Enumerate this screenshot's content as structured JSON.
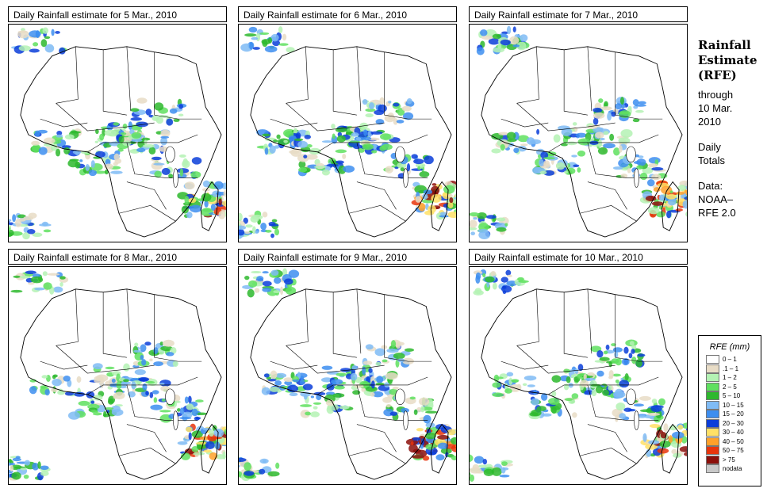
{
  "panels": [
    {
      "title": "Daily Rainfall estimate for  5 Mar., 2010"
    },
    {
      "title": "Daily Rainfall estimate for  6 Mar., 2010"
    },
    {
      "title": "Daily Rainfall estimate for  7 Mar., 2010"
    },
    {
      "title": "Daily Rainfall estimate for  8 Mar., 2010"
    },
    {
      "title": "Daily Rainfall estimate for  9 Mar., 2010"
    },
    {
      "title": "Daily Rainfall estimate for  10 Mar., 2010"
    }
  ],
  "sidebar": {
    "title_line1": "Rainfall",
    "title_line2": "Estimate",
    "title_line3": "(RFE)",
    "through_label": "through",
    "through_date_line1": "10 Mar.",
    "through_date_line2": "2010",
    "totals_line1": "Daily",
    "totals_line2": "Totals",
    "data_label": "Data:",
    "source_line1": "NOAA–",
    "source_line2": "RFE 2.0"
  },
  "legend": {
    "title": "RFE (mm)",
    "items": [
      {
        "label": "0 – 1",
        "color": "#ffffff"
      },
      {
        "label": ".1 – 1",
        "color": "#e8dcc6"
      },
      {
        "label": "1 – 2",
        "color": "#b4f2b4"
      },
      {
        "label": "2 – 5",
        "color": "#5fe05f"
      },
      {
        "label": "5 – 10",
        "color": "#2db82d"
      },
      {
        "label": "10 – 15",
        "color": "#7fbbf5"
      },
      {
        "label": "15 – 20",
        "color": "#3d8ef0"
      },
      {
        "label": "20 – 30",
        "color": "#0b3ed9"
      },
      {
        "label": "30 – 40",
        "color": "#ffe066"
      },
      {
        "label": "40 – 50",
        "color": "#ffa12a"
      },
      {
        "label": "50 – 75",
        "color": "#e8350c"
      },
      {
        "label": "> 75",
        "color": "#8c0f0a"
      },
      {
        "label": "nodata",
        "color": "#c8c8c8"
      }
    ]
  }
}
